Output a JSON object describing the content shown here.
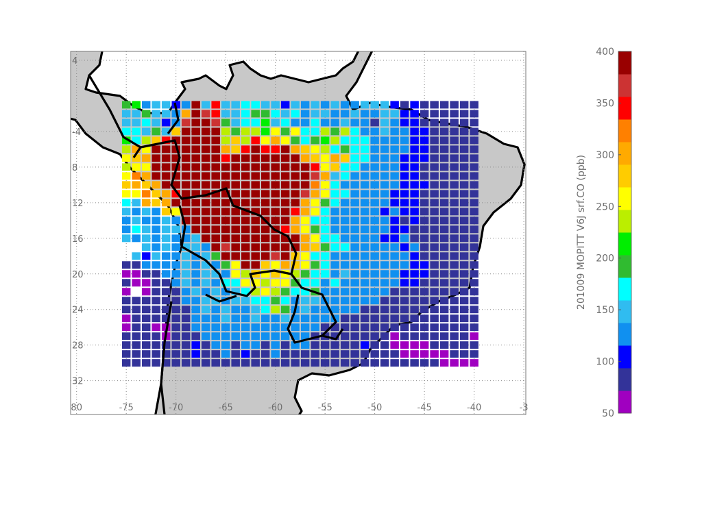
{
  "chart_data": {
    "type": "gridmap",
    "xlim": [
      -80.6,
      -34.8
    ],
    "ylim": [
      -35.8,
      5
    ],
    "xticks": [
      {
        "value": -80,
        "label": "80"
      },
      -75,
      -70,
      -65,
      -60,
      -55,
      -50,
      -45,
      -40,
      {
        "value": -35,
        "label": "-3"
      }
    ],
    "yticks": [
      4,
      -4,
      {
        "value": -8,
        "label": "8"
      },
      {
        "value": -12,
        "label": "12"
      },
      {
        "value": -16,
        "label": "16"
      },
      {
        "value": -20,
        "label": "20"
      },
      {
        "value": -24,
        "label": "24"
      },
      {
        "value": -28,
        "label": "28"
      },
      {
        "value": -32,
        "label": "32"
      }
    ],
    "grid": true,
    "lons": [
      -75,
      -74,
      -73,
      -72,
      -71,
      -70,
      -69,
      -68,
      -67,
      -66,
      -65,
      -64,
      -63,
      -62,
      -61,
      -60,
      -59,
      -58,
      -57,
      -56,
      -55,
      -54,
      -53,
      -52,
      -51,
      -50,
      -49,
      -48,
      -47,
      -46,
      -45,
      -44,
      -43,
      -42,
      -41,
      -40
    ],
    "lats": [
      -1,
      -2,
      -3,
      -4,
      -5,
      -6,
      -7,
      -8,
      -9,
      -10,
      -11,
      -12,
      -13,
      -14,
      -15,
      -16,
      -17,
      -18,
      -19,
      -20,
      -21,
      -22,
      -23,
      -24,
      -25,
      -26,
      -27,
      -28,
      -29,
      -30
    ],
    "values": [
      [
        195,
        215,
        130,
        155,
        155,
        110,
        130,
        390,
        155,
        350,
        155,
        155,
        175,
        175,
        155,
        155,
        110,
        155,
        130,
        155,
        130,
        155,
        130,
        130,
        155,
        155,
        155,
        110,
        90,
        110,
        90,
        90,
        90,
        90,
        90,
        90
      ],
      [
        155,
        155,
        195,
        155,
        155,
        130,
        305,
        390,
        370,
        350,
        155,
        155,
        175,
        195,
        195,
        175,
        155,
        175,
        130,
        155,
        155,
        130,
        130,
        155,
        130,
        130,
        155,
        155,
        110,
        110,
        90,
        90,
        90,
        90,
        90,
        90
      ],
      [
        155,
        155,
        175,
        155,
        110,
        130,
        370,
        390,
        390,
        370,
        195,
        155,
        175,
        175,
        215,
        155,
        175,
        130,
        130,
        175,
        130,
        130,
        155,
        130,
        130,
        90,
        155,
        130,
        110,
        110,
        90,
        90,
        90,
        90,
        90,
        90
      ],
      [
        175,
        175,
        155,
        195,
        155,
        280,
        390,
        390,
        390,
        390,
        240,
        195,
        240,
        240,
        215,
        260,
        195,
        260,
        175,
        175,
        240,
        195,
        240,
        175,
        130,
        130,
        155,
        130,
        130,
        110,
        110,
        90,
        90,
        90,
        90,
        90
      ],
      [
        215,
        175,
        240,
        280,
        350,
        390,
        390,
        390,
        390,
        390,
        240,
        280,
        240,
        350,
        260,
        305,
        260,
        195,
        175,
        195,
        215,
        240,
        175,
        175,
        175,
        130,
        130,
        130,
        130,
        110,
        110,
        90,
        90,
        90,
        90,
        90
      ],
      [
        240,
        305,
        260,
        390,
        390,
        390,
        390,
        390,
        390,
        390,
        305,
        280,
        350,
        390,
        350,
        350,
        390,
        305,
        280,
        260,
        240,
        175,
        195,
        175,
        175,
        130,
        130,
        130,
        130,
        110,
        110,
        90,
        90,
        90,
        90,
        90
      ],
      [
        260,
        280,
        305,
        390,
        390,
        390,
        390,
        390,
        390,
        390,
        350,
        390,
        390,
        390,
        390,
        390,
        390,
        390,
        305,
        280,
        260,
        305,
        280,
        175,
        175,
        130,
        130,
        130,
        110,
        110,
        110,
        90,
        90,
        90,
        90,
        90
      ],
      [
        240,
        260,
        260,
        390,
        390,
        390,
        390,
        390,
        390,
        390,
        390,
        390,
        390,
        390,
        390,
        390,
        390,
        390,
        390,
        350,
        260,
        280,
        175,
        175,
        130,
        130,
        130,
        130,
        110,
        110,
        90,
        90,
        90,
        90,
        90,
        90
      ],
      [
        260,
        325,
        305,
        390,
        390,
        390,
        390,
        390,
        390,
        390,
        390,
        390,
        390,
        390,
        390,
        390,
        390,
        390,
        390,
        370,
        305,
        155,
        175,
        130,
        130,
        130,
        130,
        130,
        110,
        110,
        90,
        90,
        90,
        90,
        90,
        90
      ],
      [
        280,
        305,
        280,
        305,
        390,
        390,
        390,
        390,
        390,
        390,
        390,
        390,
        390,
        390,
        390,
        390,
        390,
        390,
        390,
        325,
        260,
        175,
        130,
        130,
        130,
        130,
        130,
        130,
        110,
        110,
        110,
        90,
        90,
        90,
        90,
        90
      ],
      [
        260,
        260,
        325,
        280,
        305,
        350,
        390,
        390,
        390,
        390,
        390,
        390,
        390,
        390,
        390,
        390,
        390,
        390,
        370,
        305,
        260,
        175,
        175,
        130,
        130,
        130,
        130,
        110,
        110,
        110,
        90,
        90,
        90,
        90,
        90,
        90
      ],
      [
        175,
        155,
        305,
        280,
        305,
        390,
        390,
        390,
        390,
        390,
        390,
        390,
        390,
        390,
        390,
        390,
        390,
        390,
        305,
        260,
        195,
        175,
        130,
        130,
        130,
        130,
        130,
        110,
        110,
        110,
        90,
        90,
        90,
        90,
        90,
        90
      ],
      [
        155,
        130,
        155,
        130,
        280,
        260,
        390,
        390,
        390,
        390,
        390,
        390,
        390,
        390,
        390,
        390,
        390,
        350,
        305,
        260,
        175,
        130,
        130,
        130,
        130,
        130,
        110,
        130,
        110,
        110,
        90,
        90,
        90,
        90,
        90,
        90
      ],
      [
        130,
        155,
        130,
        130,
        155,
        130,
        390,
        390,
        390,
        390,
        390,
        390,
        390,
        390,
        390,
        390,
        390,
        305,
        260,
        175,
        175,
        130,
        130,
        130,
        130,
        130,
        130,
        110,
        90,
        110,
        90,
        90,
        90,
        90,
        90,
        90
      ],
      [
        130,
        175,
        155,
        130,
        155,
        155,
        130,
        390,
        390,
        390,
        390,
        390,
        390,
        390,
        390,
        390,
        350,
        305,
        260,
        195,
        175,
        130,
        130,
        130,
        130,
        130,
        130,
        110,
        110,
        90,
        90,
        90,
        90,
        90,
        90,
        90
      ],
      [
        155,
        130,
        155,
        130,
        155,
        130,
        130,
        155,
        390,
        390,
        390,
        390,
        390,
        390,
        390,
        390,
        390,
        390,
        305,
        260,
        175,
        175,
        130,
        130,
        130,
        130,
        110,
        110,
        130,
        90,
        90,
        90,
        90,
        90,
        90,
        90
      ],
      [
        null,
        null,
        155,
        130,
        155,
        130,
        155,
        155,
        130,
        390,
        370,
        390,
        390,
        390,
        390,
        390,
        390,
        390,
        305,
        280,
        195,
        175,
        175,
        130,
        130,
        130,
        130,
        130,
        110,
        130,
        90,
        90,
        90,
        90,
        90,
        90
      ],
      [
        null,
        155,
        110,
        155,
        130,
        130,
        155,
        130,
        155,
        195,
        390,
        390,
        390,
        390,
        390,
        370,
        390,
        280,
        260,
        175,
        175,
        130,
        130,
        130,
        130,
        130,
        130,
        130,
        130,
        110,
        90,
        90,
        90,
        90,
        90,
        90
      ],
      [
        90,
        90,
        130,
        130,
        130,
        130,
        155,
        130,
        155,
        130,
        195,
        260,
        390,
        390,
        280,
        260,
        305,
        280,
        260,
        195,
        175,
        130,
        130,
        130,
        130,
        130,
        130,
        130,
        130,
        110,
        110,
        90,
        90,
        90,
        90,
        90
      ],
      [
        60,
        60,
        90,
        90,
        130,
        130,
        155,
        130,
        155,
        155,
        130,
        260,
        240,
        280,
        260,
        280,
        260,
        240,
        195,
        175,
        175,
        130,
        155,
        130,
        130,
        130,
        130,
        130,
        110,
        110,
        110,
        90,
        90,
        90,
        90,
        90
      ],
      [
        90,
        60,
        60,
        90,
        90,
        130,
        155,
        130,
        155,
        130,
        175,
        175,
        260,
        260,
        240,
        260,
        260,
        195,
        175,
        175,
        130,
        175,
        130,
        130,
        130,
        130,
        130,
        130,
        110,
        110,
        90,
        90,
        90,
        90,
        90,
        90
      ],
      [
        60,
        null,
        60,
        90,
        90,
        90,
        130,
        155,
        130,
        155,
        130,
        155,
        175,
        240,
        260,
        240,
        195,
        175,
        175,
        195,
        130,
        130,
        130,
        130,
        130,
        130,
        130,
        90,
        90,
        90,
        90,
        90,
        90,
        90,
        90,
        90
      ],
      [
        90,
        90,
        90,
        90,
        90,
        90,
        130,
        130,
        155,
        155,
        130,
        155,
        155,
        175,
        175,
        195,
        175,
        130,
        155,
        155,
        130,
        130,
        130,
        130,
        130,
        130,
        90,
        90,
        90,
        90,
        90,
        90,
        90,
        90,
        90,
        90
      ],
      [
        90,
        90,
        90,
        90,
        90,
        90,
        90,
        130,
        155,
        130,
        155,
        130,
        130,
        155,
        175,
        240,
        195,
        130,
        155,
        130,
        130,
        130,
        130,
        130,
        90,
        90,
        90,
        90,
        90,
        90,
        90,
        90,
        90,
        90,
        90,
        90
      ],
      [
        60,
        90,
        90,
        90,
        90,
        90,
        90,
        130,
        130,
        130,
        155,
        130,
        130,
        155,
        130,
        130,
        155,
        130,
        130,
        130,
        130,
        130,
        90,
        90,
        90,
        90,
        90,
        90,
        90,
        90,
        90,
        90,
        90,
        90,
        90,
        90
      ],
      [
        60,
        90,
        90,
        60,
        60,
        90,
        90,
        130,
        130,
        130,
        130,
        130,
        130,
        130,
        130,
        130,
        130,
        130,
        130,
        130,
        90,
        90,
        90,
        90,
        90,
        90,
        90,
        90,
        90,
        90,
        90,
        90,
        90,
        90,
        90,
        90
      ],
      [
        90,
        90,
        90,
        90,
        60,
        90,
        90,
        90,
        130,
        130,
        130,
        130,
        130,
        130,
        130,
        130,
        130,
        130,
        130,
        90,
        90,
        90,
        90,
        90,
        90,
        90,
        90,
        60,
        90,
        90,
        90,
        90,
        90,
        90,
        90,
        60
      ],
      [
        90,
        90,
        90,
        90,
        90,
        90,
        90,
        110,
        90,
        130,
        130,
        90,
        130,
        130,
        90,
        130,
        90,
        130,
        130,
        90,
        90,
        90,
        90,
        90,
        110,
        90,
        90,
        60,
        60,
        60,
        60,
        90,
        90,
        90,
        90,
        90
      ],
      [
        90,
        90,
        90,
        90,
        90,
        90,
        90,
        110,
        90,
        90,
        130,
        90,
        110,
        90,
        90,
        130,
        90,
        90,
        90,
        90,
        90,
        90,
        90,
        90,
        90,
        90,
        90,
        90,
        60,
        60,
        60,
        60,
        60,
        90,
        90,
        90
      ],
      [
        90,
        90,
        90,
        90,
        90,
        90,
        90,
        90,
        90,
        90,
        90,
        90,
        90,
        90,
        90,
        90,
        90,
        90,
        90,
        90,
        90,
        90,
        90,
        90,
        90,
        90,
        90,
        90,
        90,
        90,
        90,
        90,
        60,
        60,
        60,
        60
      ]
    ],
    "colorbar": {
      "label": "201009 MOPITT V6J srf.CO (ppb)",
      "clim": [
        50,
        400
      ],
      "ticks": [
        50,
        100,
        150,
        200,
        250,
        300,
        350,
        400
      ],
      "colors": [
        "#a000c0",
        "#333399",
        "#0000ff",
        "#1090f0",
        "#30bcf0",
        "#00ffff",
        "#30bb30",
        "#00ee00",
        "#bbee00",
        "#ffff00",
        "#ffcc00",
        "#ffaa00",
        "#ff8000",
        "#ff0000",
        "#cc3333",
        "#990000"
      ]
    },
    "land_color": "#c8c8c8"
  }
}
